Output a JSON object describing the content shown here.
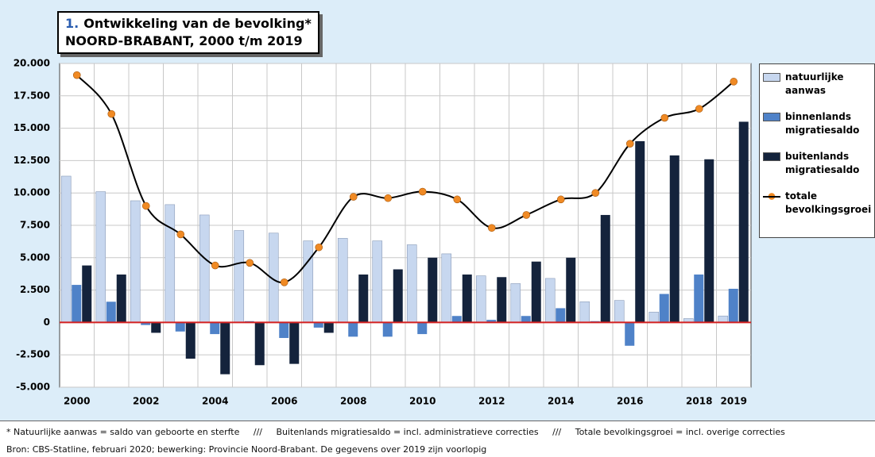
{
  "chart_data": {
    "type": "bar",
    "title_number": "1.",
    "title": "Ontwikkeling van de bevolking*",
    "subtitle": "NOORD-BRABANT, 2000 t/m 2019",
    "categories": [
      "2000",
      null,
      "2002",
      null,
      "2004",
      null,
      "2006",
      null,
      "2008",
      null,
      "2010",
      null,
      "2012",
      null,
      "2014",
      null,
      "2016",
      null,
      "2018",
      "2019"
    ],
    "series": [
      {
        "name": "natuurlijke aanwas",
        "color": "#c7d7ef",
        "values": [
          11300,
          10100,
          9400,
          9100,
          8300,
          7100,
          6900,
          6300,
          6500,
          6300,
          6000,
          5300,
          3600,
          3000,
          3400,
          1600,
          1700,
          800,
          300,
          500
        ]
      },
      {
        "name": "binnenlands migratiesaldo",
        "color": "#4f82c8",
        "values": [
          2900,
          1600,
          -200,
          -700,
          -900,
          100,
          -1200,
          -400,
          -1100,
          -1100,
          -900,
          500,
          200,
          500,
          1100,
          100,
          -1800,
          2200,
          3700,
          2600
        ]
      },
      {
        "name": "buitenlands migratiesaldo",
        "color": "#14233c",
        "values": [
          4400,
          3700,
          -800,
          -2800,
          -4000,
          -3300,
          -3200,
          -800,
          3700,
          4100,
          5000,
          3700,
          3500,
          4700,
          5000,
          8300,
          14000,
          12900,
          12600,
          15500
        ]
      },
      {
        "name": "totale bevolkingsgroei",
        "type": "line",
        "color": "#000000",
        "marker_color": "#f08a24",
        "values": [
          19100,
          16100,
          9000,
          6800,
          4400,
          4600,
          3100,
          5800,
          9700,
          9600,
          10100,
          9500,
          7300,
          8300,
          9500,
          10000,
          13800,
          15800,
          16500,
          18600
        ]
      }
    ],
    "ylim": [
      -5000,
      20000
    ],
    "yticks": [
      {
        "value": 20000,
        "label": "20.000"
      },
      {
        "value": 17500,
        "label": "17.500"
      },
      {
        "value": 15000,
        "label": "15.000"
      },
      {
        "value": 12500,
        "label": "12.500"
      },
      {
        "value": 10000,
        "label": "10.000"
      },
      {
        "value": 7500,
        "label": "7.500"
      },
      {
        "value": 5000,
        "label": "5.000"
      },
      {
        "value": 2500,
        "label": "2.500"
      },
      0,
      {
        "value": -2500,
        "label": "-2.500"
      },
      {
        "value": -5000,
        "label": "-5.000"
      }
    ],
    "grid": true,
    "zero_line_color": "#d42020",
    "notes": [
      "*   Natuurlijke aanwas = saldo van geboorte en sterfte",
      "Buitenlands migratiesaldo = incl. administratieve correcties",
      "Totale bevolkingsgroei = incl. overige correcties"
    ],
    "note_separator": "///",
    "source": "Bron: CBS-Statline, februari 2020; bewerking: Provincie Noord-Brabant. De gegevens over 2019 zijn voorlopig"
  }
}
